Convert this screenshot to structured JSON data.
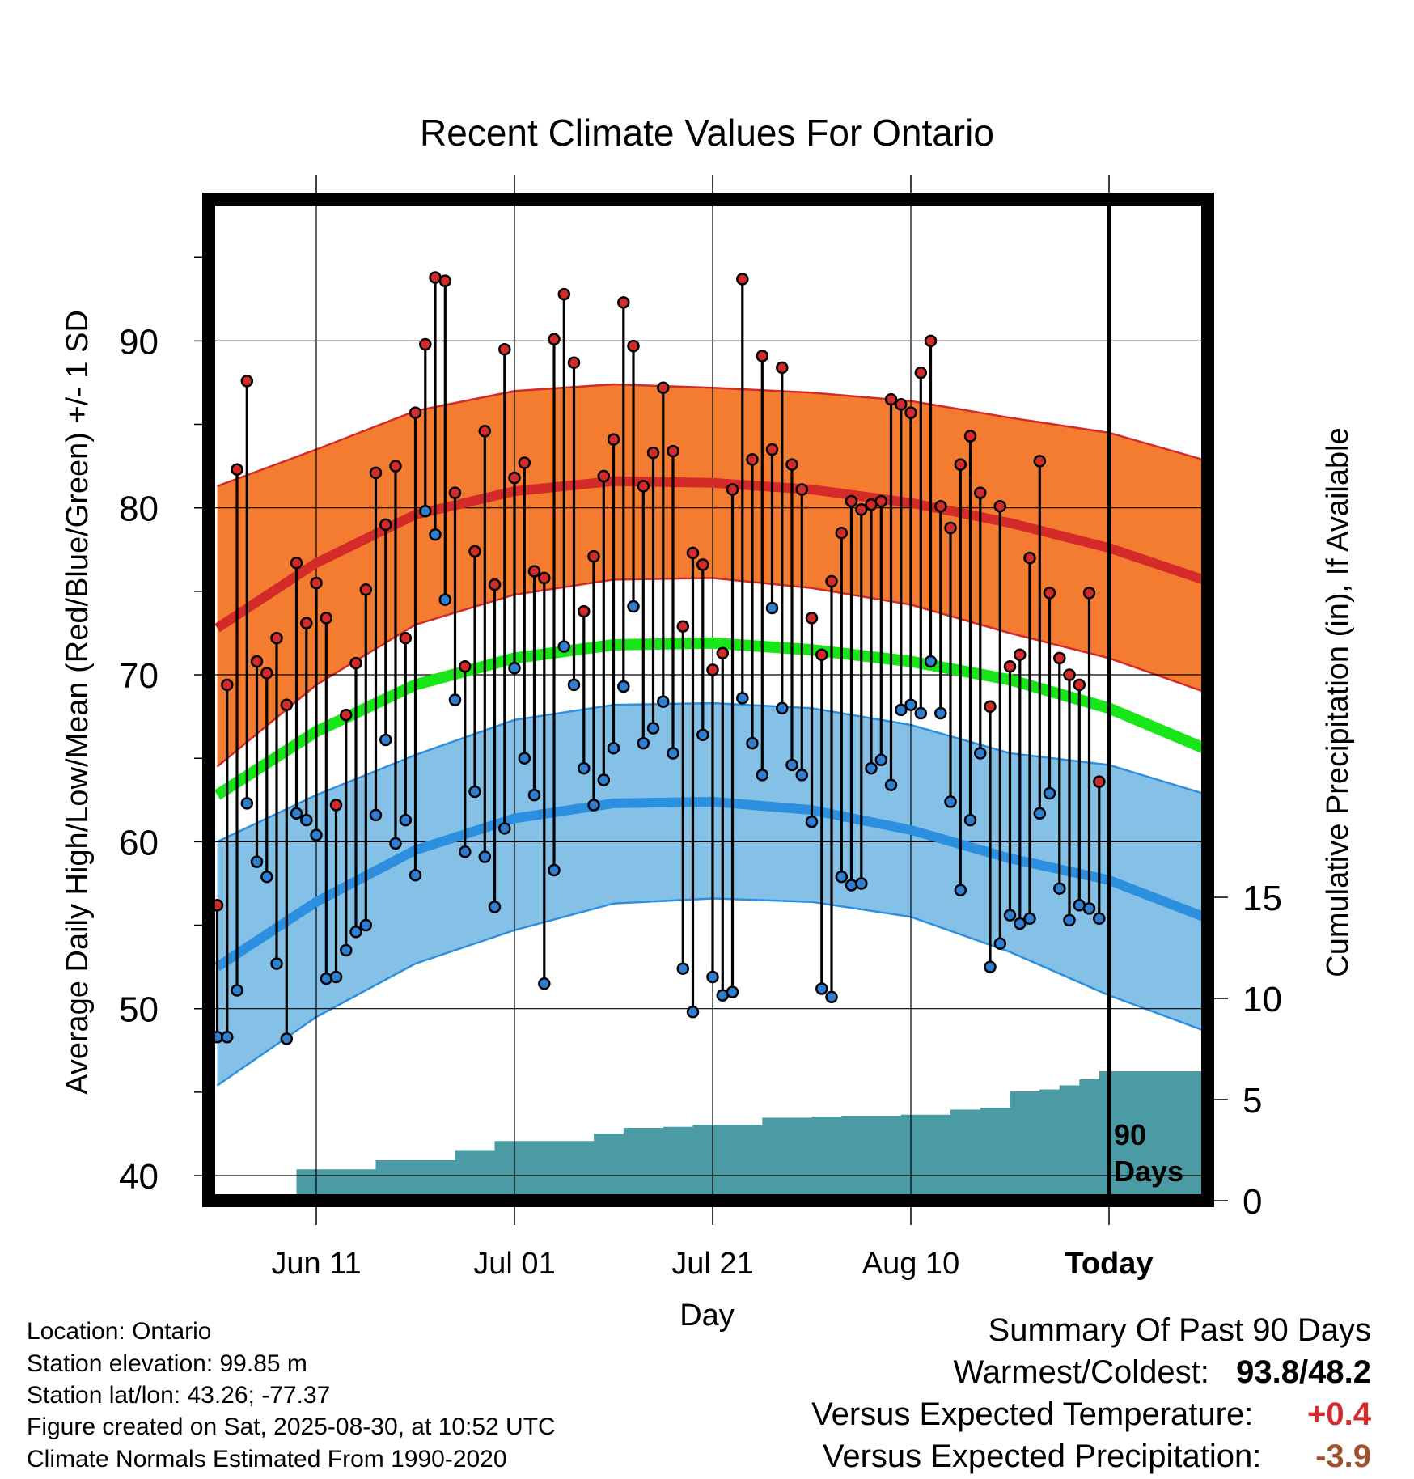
{
  "chart_data": {
    "type": "line",
    "title": "Recent Climate Values For Ontario",
    "xlabel": "Day",
    "ylabel": "Average Daily High/Low/Mean (Red/Blue/Green) +/- 1 SD",
    "y2label": "Cumulative Precipitation (in), If Available",
    "ylim": [
      38.5,
      98.5
    ],
    "y2lim": [
      0,
      22.5
    ],
    "yticks": [
      40,
      50,
      60,
      70,
      80,
      90
    ],
    "y2ticks": [
      0,
      5,
      10,
      15
    ],
    "xlim": [
      -0.5,
      100
    ],
    "xticks": [
      {
        "x": 10,
        "label": "Jun 11"
      },
      {
        "x": 30,
        "label": "Jul 01"
      },
      {
        "x": 50,
        "label": "Jul 21"
      },
      {
        "x": 70,
        "label": "Aug 10"
      },
      {
        "x": 90,
        "label": "Today"
      }
    ],
    "today_label": "90 Days",
    "grid": true,
    "normals": {
      "x": [
        0,
        10,
        20,
        30,
        40,
        50,
        60,
        70,
        80,
        90,
        100
      ],
      "high_mean": [
        72.8,
        76.7,
        79.6,
        81.0,
        81.6,
        81.5,
        81.1,
        80.3,
        79.1,
        77.6,
        75.6
      ],
      "high_upper": [
        81.3,
        83.5,
        85.8,
        87.0,
        87.4,
        87.2,
        86.9,
        86.4,
        85.4,
        84.5,
        82.8
      ],
      "high_lower": [
        64.5,
        69.4,
        73.0,
        74.8,
        75.7,
        75.8,
        75.2,
        74.2,
        72.5,
        71.0,
        68.9
      ],
      "mean_mean": [
        62.8,
        66.6,
        69.4,
        71.0,
        71.8,
        71.9,
        71.5,
        70.8,
        69.7,
        68.0,
        65.5
      ],
      "low_mean": [
        52.5,
        56.4,
        59.5,
        61.4,
        62.3,
        62.4,
        61.9,
        60.7,
        59.0,
        57.7,
        55.4
      ],
      "low_upper": [
        60.0,
        62.8,
        65.2,
        67.3,
        68.2,
        68.3,
        68.0,
        67.0,
        65.3,
        64.6,
        62.8
      ],
      "low_lower": [
        45.4,
        49.5,
        52.7,
        54.7,
        56.3,
        56.6,
        56.4,
        55.5,
        53.4,
        50.8,
        48.6
      ]
    },
    "series": [
      {
        "name": "High",
        "color": "#d42a2a",
        "values": [
          56.2,
          69.4,
          82.3,
          87.6,
          70.8,
          70.1,
          72.2,
          68.2,
          76.7,
          73.1,
          75.5,
          73.4,
          62.2,
          67.6,
          70.7,
          75.1,
          82.1,
          79.0,
          82.5,
          72.2,
          85.7,
          89.8,
          93.8,
          93.6,
          80.9,
          70.5,
          77.4,
          84.6,
          75.4,
          89.5,
          81.8,
          82.7,
          76.2,
          75.8,
          90.1,
          92.8,
          88.7,
          73.8,
          77.1,
          81.9,
          84.1,
          92.3,
          89.7,
          81.3,
          83.3,
          87.2,
          83.4,
          72.9,
          77.3,
          76.6,
          70.3,
          71.3,
          81.1,
          93.7,
          82.9,
          89.1,
          83.5,
          88.4,
          82.6,
          81.1,
          73.4,
          71.2,
          75.6,
          78.5,
          80.4,
          79.9,
          80.2,
          80.4,
          86.5,
          86.2,
          85.7,
          88.1,
          90.0,
          80.1,
          78.8,
          82.6,
          84.3,
          80.9,
          68.1,
          80.1,
          70.5,
          71.2,
          77.0,
          82.8,
          74.9,
          71.0,
          70.0,
          69.4,
          74.9,
          63.6
        ]
      },
      {
        "name": "Low",
        "color": "#2e7fd4",
        "values": [
          48.3,
          48.3,
          51.1,
          62.3,
          58.8,
          57.9,
          52.7,
          48.2,
          61.7,
          61.3,
          60.4,
          51.8,
          51.9,
          53.5,
          54.6,
          55.0,
          61.6,
          66.1,
          59.9,
          61.3,
          58.0,
          79.8,
          78.4,
          74.5,
          68.5,
          59.4,
          63.0,
          59.1,
          56.1,
          60.8,
          70.4,
          65.0,
          62.8,
          51.5,
          58.3,
          71.7,
          69.4,
          64.4,
          62.2,
          63.7,
          65.6,
          69.3,
          74.1,
          65.9,
          66.8,
          68.4,
          65.3,
          52.4,
          49.8,
          66.4,
          51.9,
          50.8,
          51.0,
          68.6,
          65.9,
          64.0,
          74.0,
          68.0,
          64.6,
          64.0,
          61.2,
          51.2,
          50.7,
          57.9,
          57.4,
          57.5,
          64.4,
          64.9,
          63.4,
          67.9,
          68.2,
          67.7,
          70.8,
          67.7,
          62.4,
          57.1,
          61.3,
          65.3,
          52.5,
          53.9,
          55.6,
          55.1,
          55.4,
          61.7,
          62.9,
          57.2,
          55.3,
          56.2,
          56.0,
          55.4
        ]
      },
      {
        "name": "Cumulative Precipitation",
        "color": "#4a9ba4",
        "precip_steps": [
          {
            "x": 5,
            "v": 0.1
          },
          {
            "x": 8,
            "v": 1.55
          },
          {
            "x": 16,
            "v": 2.0
          },
          {
            "x": 24,
            "v": 2.5
          },
          {
            "x": 28,
            "v": 2.95
          },
          {
            "x": 38,
            "v": 3.3
          },
          {
            "x": 41,
            "v": 3.6
          },
          {
            "x": 45,
            "v": 3.65
          },
          {
            "x": 48,
            "v": 3.75
          },
          {
            "x": 55,
            "v": 4.1
          },
          {
            "x": 60,
            "v": 4.15
          },
          {
            "x": 63,
            "v": 4.2
          },
          {
            "x": 69,
            "v": 4.25
          },
          {
            "x": 74,
            "v": 4.5
          },
          {
            "x": 77,
            "v": 4.6
          },
          {
            "x": 80,
            "v": 5.4
          },
          {
            "x": 83,
            "v": 5.5
          },
          {
            "x": 85,
            "v": 5.7
          },
          {
            "x": 87,
            "v": 6.0
          },
          {
            "x": 89,
            "v": 6.4
          },
          {
            "x": 100,
            "v": 6.4
          }
        ]
      }
    ]
  },
  "info": {
    "location": "Location: Ontario",
    "elevation": "Station elevation: 99.85 m",
    "latlon": "Station lat/lon: 43.26; -77.37",
    "created": "Figure created on Sat, 2025-08-30, at 10:52 UTC",
    "normals": "Climate Normals Estimated From 1990-2020"
  },
  "summary": {
    "title": "Summary Of Past 90 Days",
    "warm_cold_label": "Warmest/Coldest:",
    "warmest": "93.8",
    "slash": "/",
    "coldest": "48.2",
    "temp_label": "Versus Expected Temperature:",
    "temp_value": "+0.4",
    "temp_color": "#d42a2a",
    "precip_label": "Versus Expected Precipitation:",
    "precip_value": "-3.9",
    "precip_color": "#a0522d"
  }
}
